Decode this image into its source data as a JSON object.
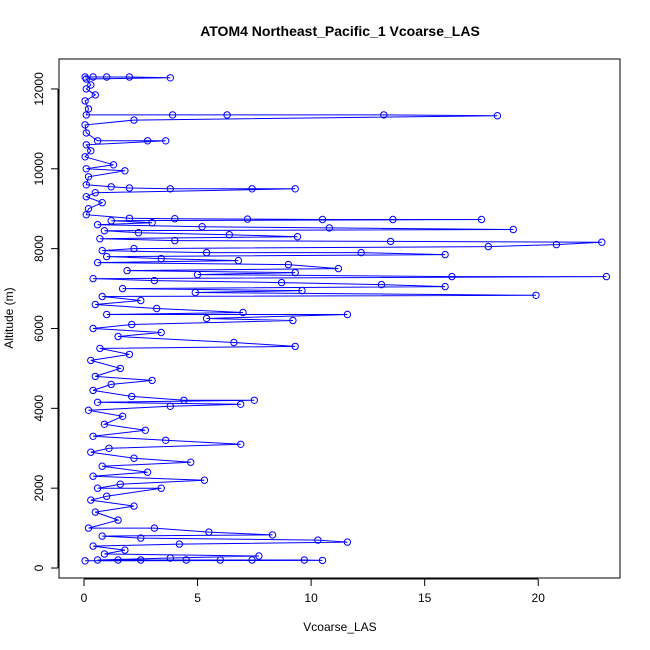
{
  "chart_data": {
    "type": "scatter",
    "title": "ATOM4 Northeast_Pacific_1 Vcoarse_LAS",
    "xlabel": "Vcoarse_LAS",
    "ylabel": "Altitude (m)",
    "xlim": [
      -1.1,
      23.6
    ],
    "ylim": [
      -250,
      12750
    ],
    "x_ticks": [
      0,
      5,
      10,
      15,
      20
    ],
    "y_ticks": [
      0,
      2000,
      4000,
      6000,
      8000,
      10000,
      12000
    ],
    "x_tick_labels": [
      "0",
      "5",
      "10",
      "15",
      "20"
    ],
    "y_tick_labels": [
      "0",
      "2000",
      "4000",
      "6000",
      "8000",
      "10000",
      "12000"
    ],
    "grid": false,
    "series": [
      {
        "color": "#0000ff",
        "marker": "open-circle",
        "line": true,
        "points": [
          [
            0.05,
            12300
          ],
          [
            0.4,
            12300
          ],
          [
            1.0,
            12300
          ],
          [
            2.0,
            12300
          ],
          [
            3.8,
            12280
          ],
          [
            0.1,
            12250
          ],
          [
            0.3,
            12100
          ],
          [
            0.1,
            12000
          ],
          [
            0.5,
            11850
          ],
          [
            0.05,
            11700
          ],
          [
            0.2,
            11500
          ],
          [
            0.1,
            11350
          ],
          [
            3.9,
            11350
          ],
          [
            6.3,
            11350
          ],
          [
            13.2,
            11350
          ],
          [
            18.2,
            11330
          ],
          [
            2.2,
            11220
          ],
          [
            0.05,
            11100
          ],
          [
            0.1,
            10900
          ],
          [
            0.6,
            10700
          ],
          [
            2.8,
            10700
          ],
          [
            3.6,
            10700
          ],
          [
            0.1,
            10600
          ],
          [
            0.3,
            10450
          ],
          [
            0.05,
            10300
          ],
          [
            1.3,
            10100
          ],
          [
            0.1,
            10000
          ],
          [
            1.8,
            9950
          ],
          [
            0.2,
            9800
          ],
          [
            0.1,
            9600
          ],
          [
            1.2,
            9550
          ],
          [
            2.0,
            9520
          ],
          [
            3.8,
            9500
          ],
          [
            7.4,
            9500
          ],
          [
            9.3,
            9500
          ],
          [
            0.5,
            9400
          ],
          [
            0.1,
            9300
          ],
          [
            0.8,
            9150
          ],
          [
            0.2,
            9000
          ],
          [
            0.1,
            8850
          ],
          [
            2.0,
            8760
          ],
          [
            4.0,
            8750
          ],
          [
            7.2,
            8740
          ],
          [
            10.5,
            8730
          ],
          [
            13.6,
            8730
          ],
          [
            17.5,
            8730
          ],
          [
            1.2,
            8700
          ],
          [
            3.0,
            8650
          ],
          [
            0.6,
            8600
          ],
          [
            5.2,
            8550
          ],
          [
            10.8,
            8520
          ],
          [
            18.9,
            8480
          ],
          [
            0.9,
            8450
          ],
          [
            2.4,
            8400
          ],
          [
            6.4,
            8350
          ],
          [
            9.4,
            8300
          ],
          [
            0.7,
            8250
          ],
          [
            4.0,
            8200
          ],
          [
            13.5,
            8180
          ],
          [
            22.8,
            8160
          ],
          [
            20.8,
            8100
          ],
          [
            17.8,
            8050
          ],
          [
            2.2,
            8000
          ],
          [
            0.8,
            7950
          ],
          [
            5.4,
            7900
          ],
          [
            12.2,
            7900
          ],
          [
            15.9,
            7850
          ],
          [
            1.0,
            7800
          ],
          [
            3.4,
            7750
          ],
          [
            6.8,
            7700
          ],
          [
            0.6,
            7650
          ],
          [
            9.0,
            7600
          ],
          [
            11.2,
            7500
          ],
          [
            1.9,
            7450
          ],
          [
            9.3,
            7400
          ],
          [
            5.0,
            7350
          ],
          [
            16.2,
            7300
          ],
          [
            23.0,
            7300
          ],
          [
            0.4,
            7250
          ],
          [
            3.1,
            7200
          ],
          [
            8.7,
            7150
          ],
          [
            13.1,
            7100
          ],
          [
            15.9,
            7050
          ],
          [
            1.7,
            7000
          ],
          [
            9.6,
            6950
          ],
          [
            4.9,
            6900
          ],
          [
            19.9,
            6830
          ],
          [
            0.8,
            6800
          ],
          [
            2.5,
            6700
          ],
          [
            0.5,
            6600
          ],
          [
            3.2,
            6500
          ],
          [
            7.0,
            6400
          ],
          [
            1.0,
            6350
          ],
          [
            11.6,
            6350
          ],
          [
            5.4,
            6250
          ],
          [
            9.2,
            6200
          ],
          [
            2.1,
            6100
          ],
          [
            0.4,
            6000
          ],
          [
            3.4,
            5900
          ],
          [
            1.5,
            5800
          ],
          [
            6.6,
            5650
          ],
          [
            9.3,
            5550
          ],
          [
            0.7,
            5500
          ],
          [
            2.0,
            5350
          ],
          [
            0.3,
            5200
          ],
          [
            1.6,
            5000
          ],
          [
            0.5,
            4800
          ],
          [
            3.0,
            4700
          ],
          [
            1.2,
            4600
          ],
          [
            0.4,
            4450
          ],
          [
            2.1,
            4300
          ],
          [
            4.4,
            4200
          ],
          [
            7.5,
            4200
          ],
          [
            0.6,
            4150
          ],
          [
            6.9,
            4100
          ],
          [
            3.8,
            4050
          ],
          [
            0.2,
            3950
          ],
          [
            1.7,
            3800
          ],
          [
            0.9,
            3600
          ],
          [
            2.7,
            3450
          ],
          [
            0.4,
            3300
          ],
          [
            3.6,
            3200
          ],
          [
            6.9,
            3100
          ],
          [
            1.1,
            3000
          ],
          [
            0.3,
            2900
          ],
          [
            2.2,
            2750
          ],
          [
            4.7,
            2650
          ],
          [
            0.8,
            2550
          ],
          [
            2.8,
            2400
          ],
          [
            0.4,
            2300
          ],
          [
            5.3,
            2200
          ],
          [
            1.6,
            2100
          ],
          [
            0.6,
            2000
          ],
          [
            3.4,
            2000
          ],
          [
            1.0,
            1800
          ],
          [
            0.3,
            1700
          ],
          [
            2.2,
            1550
          ],
          [
            0.5,
            1400
          ],
          [
            1.5,
            1200
          ],
          [
            0.2,
            1000
          ],
          [
            3.1,
            1000
          ],
          [
            5.5,
            900
          ],
          [
            8.3,
            830
          ],
          [
            0.8,
            800
          ],
          [
            2.5,
            750
          ],
          [
            10.3,
            700
          ],
          [
            11.6,
            650
          ],
          [
            4.2,
            600
          ],
          [
            0.4,
            550
          ],
          [
            1.8,
            450
          ],
          [
            0.9,
            350
          ],
          [
            7.7,
            300
          ],
          [
            3.8,
            250
          ],
          [
            0.6,
            200
          ],
          [
            1.5,
            200
          ],
          [
            2.5,
            200
          ],
          [
            4.5,
            200
          ],
          [
            6.0,
            200
          ],
          [
            7.4,
            200
          ],
          [
            9.7,
            200
          ],
          [
            10.5,
            190
          ],
          [
            0.05,
            180
          ]
        ]
      }
    ]
  }
}
